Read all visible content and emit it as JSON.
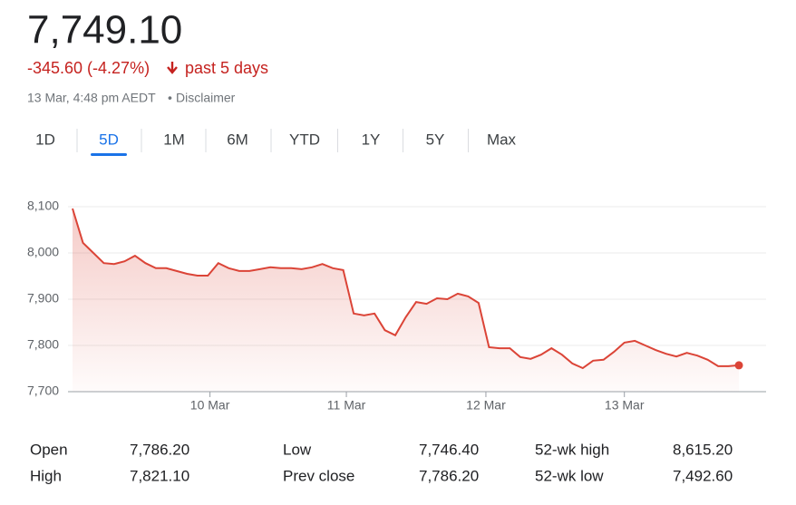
{
  "header": {
    "price": "7,749.10",
    "change": "-345.60 (-4.27%)",
    "period": "past 5 days",
    "timestamp": "13 Mar, 4:48 pm AEDT",
    "separator": "•",
    "disclaimer": "Disclaimer"
  },
  "tabs": {
    "items": [
      "1D",
      "5D",
      "1M",
      "6M",
      "YTD",
      "1Y",
      "5Y",
      "Max"
    ],
    "selected": 1
  },
  "chart_data": {
    "type": "line",
    "color": "#db4437",
    "grid": true,
    "values": [
      8096,
      8022,
      8000,
      7978,
      7976,
      7982,
      7994,
      7978,
      7967,
      7967,
      7961,
      7955,
      7951,
      7951,
      7978,
      7967,
      7961,
      7961,
      7965,
      7969,
      7967,
      7967,
      7965,
      7969,
      7976,
      7967,
      7963,
      7869,
      7865,
      7869,
      7833,
      7822,
      7861,
      7894,
      7890,
      7902,
      7900,
      7912,
      7906,
      7892,
      7796,
      7794,
      7794,
      7775,
      7771,
      7780,
      7794,
      7780,
      7761,
      7751,
      7767,
      7769,
      7786,
      7806,
      7810,
      7800,
      7790,
      7782,
      7776,
      7784,
      7778,
      7769,
      7755,
      7755,
      7757
    ],
    "xlim": [
      0,
      66
    ],
    "xticks": [
      {
        "value": 13.2,
        "label": "10 Mar"
      },
      {
        "value": 26.3,
        "label": "11 Mar"
      },
      {
        "value": 39.7,
        "label": "12 Mar"
      },
      {
        "value": 53,
        "label": "13 Mar"
      }
    ],
    "ylim": [
      7700,
      8100
    ],
    "yticks": [
      {
        "value": 7700,
        "label": "7,700"
      },
      {
        "value": 7800,
        "label": "7,800"
      },
      {
        "value": 7900,
        "label": "7,900"
      },
      {
        "value": 8000,
        "label": "8,000"
      },
      {
        "value": 8100,
        "label": "8,100"
      }
    ]
  },
  "stats": {
    "rows": [
      [
        "Open",
        "7,786.20",
        "Low",
        "7,746.40",
        "52-wk high",
        "8,615.20"
      ],
      [
        "High",
        "7,821.10",
        "Prev close",
        "7,786.20",
        "52-wk low",
        "7,492.60"
      ]
    ]
  }
}
